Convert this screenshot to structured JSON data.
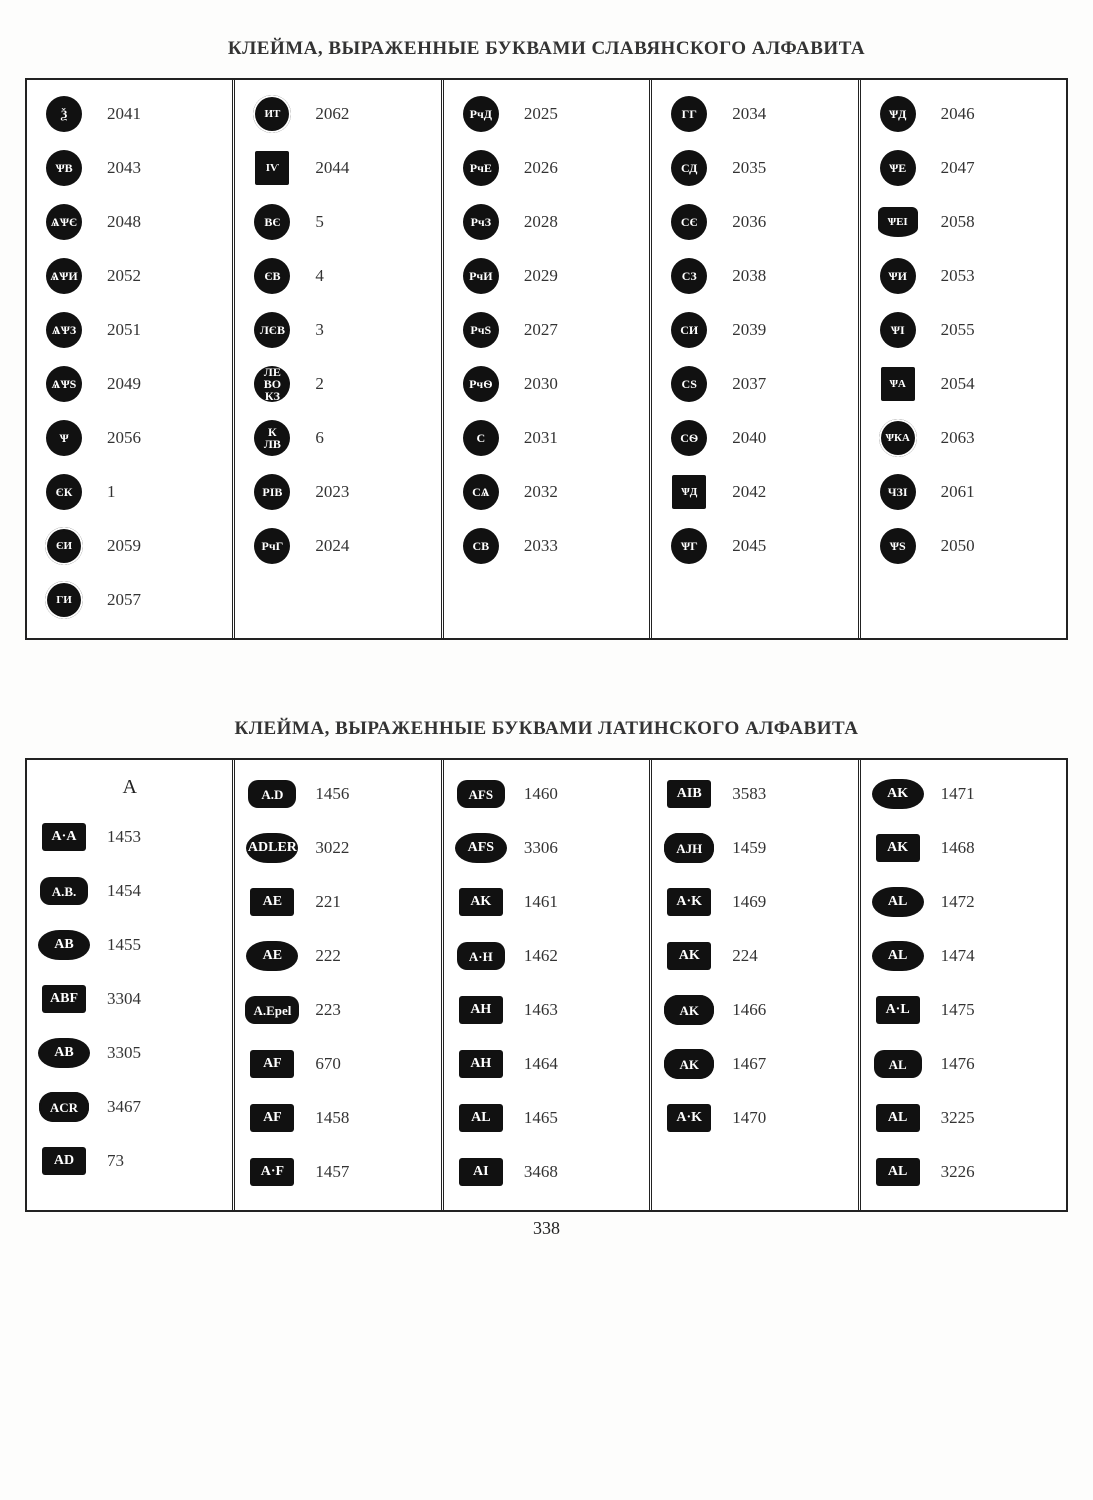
{
  "page_number": "338",
  "section1": {
    "heading": "КЛЕЙМА, ВЫРАЖЕННЫЕ БУКВАМИ СЛАВЯНСКОГО  АЛФАВИТА",
    "columns": [
      [
        {
          "glyph": "Ѯ",
          "shape": "circle",
          "num": "2041"
        },
        {
          "glyph": "ѰВ",
          "shape": "circle",
          "num": "2043"
        },
        {
          "glyph": "ѦѰЄ",
          "shape": "circle",
          "num": "2048"
        },
        {
          "glyph": "ѦѰИ",
          "shape": "circle",
          "num": "2052"
        },
        {
          "glyph": "ѦѰЗ",
          "shape": "circle",
          "num": "2051"
        },
        {
          "glyph": "ѦѰS",
          "shape": "circle",
          "num": "2049"
        },
        {
          "glyph": "Ѱ",
          "shape": "circle",
          "num": "2056"
        },
        {
          "glyph": "ЄК",
          "shape": "circle",
          "num": "1"
        },
        {
          "glyph": "ЄИ",
          "shape": "dbl",
          "num": "2059"
        },
        {
          "glyph": "ГИ",
          "shape": "dbl",
          "num": "2057"
        }
      ],
      [
        {
          "glyph": "ИТ",
          "shape": "dbl",
          "num": "2062"
        },
        {
          "glyph": "ІѴ",
          "shape": "square",
          "num": "2044"
        },
        {
          "glyph": "ВЄ",
          "shape": "circle",
          "num": "5"
        },
        {
          "glyph": "ЄВ",
          "shape": "circle",
          "num": "4"
        },
        {
          "glyph": "ЛЄВ",
          "shape": "circle",
          "num": "3"
        },
        {
          "glyph": "ЛЕ ВО КЗ",
          "shape": "circle",
          "num": "2"
        },
        {
          "glyph": "К ЛВ",
          "shape": "circle",
          "num": "6"
        },
        {
          "glyph": "РІВ",
          "shape": "circle",
          "num": "2023"
        },
        {
          "glyph": "РчГ",
          "shape": "circle",
          "num": "2024"
        }
      ],
      [
        {
          "glyph": "РчД",
          "shape": "circle",
          "num": "2025"
        },
        {
          "glyph": "РчЕ",
          "shape": "circle",
          "num": "2026"
        },
        {
          "glyph": "РчЗ",
          "shape": "circle",
          "num": "2028"
        },
        {
          "glyph": "РчИ",
          "shape": "circle",
          "num": "2029"
        },
        {
          "glyph": "РчS",
          "shape": "circle",
          "num": "2027"
        },
        {
          "glyph": "РчѲ",
          "shape": "circle",
          "num": "2030"
        },
        {
          "glyph": "С",
          "shape": "circle",
          "num": "2031"
        },
        {
          "glyph": "СѦ",
          "shape": "circle",
          "num": "2032"
        },
        {
          "glyph": "СВ",
          "shape": "circle",
          "num": "2033"
        }
      ],
      [
        {
          "glyph": "ГГ",
          "shape": "circle",
          "num": "2034"
        },
        {
          "glyph": "СД",
          "shape": "circle",
          "num": "2035"
        },
        {
          "glyph": "СЄ",
          "shape": "circle",
          "num": "2036"
        },
        {
          "glyph": "СЗ",
          "shape": "circle",
          "num": "2038"
        },
        {
          "glyph": "СИ",
          "shape": "circle",
          "num": "2039"
        },
        {
          "glyph": "СS",
          "shape": "circle",
          "num": "2037"
        },
        {
          "glyph": "СѲ",
          "shape": "circle",
          "num": "2040"
        },
        {
          "glyph": "ѰД",
          "shape": "square",
          "num": "2042"
        },
        {
          "glyph": "ѰГ",
          "shape": "circle",
          "num": "2045"
        }
      ],
      [
        {
          "glyph": "ѰД",
          "shape": "circle",
          "num": "2046"
        },
        {
          "glyph": "ѰЕ",
          "shape": "circle",
          "num": "2047"
        },
        {
          "glyph": "ѰЕІ",
          "shape": "shield",
          "num": "2058"
        },
        {
          "glyph": "ѰИ",
          "shape": "circle",
          "num": "2053"
        },
        {
          "glyph": "ѰІ",
          "shape": "circle",
          "num": "2055"
        },
        {
          "glyph": "ѰА",
          "shape": "square",
          "num": "2054"
        },
        {
          "glyph": "ѰКА",
          "shape": "dbl",
          "num": "2063"
        },
        {
          "glyph": "ЧЗІ",
          "shape": "circle",
          "num": "2061"
        },
        {
          "glyph": "ѰS",
          "shape": "circle",
          "num": "2050"
        }
      ]
    ]
  },
  "section2": {
    "heading": "КЛЕЙМА, ВЫРАЖЕННЫЕ БУКВАМИ ЛАТИНСКОГО АЛФАВИТА",
    "columns": [
      [
        {
          "glyph": "A",
          "shape": "none",
          "num": "",
          "is_header": true
        },
        {
          "glyph": "A·A",
          "shape": "rect",
          "num": "1453"
        },
        {
          "glyph": "A.B.",
          "shape": "rrect",
          "num": "1454"
        },
        {
          "glyph": "AB",
          "shape": "oval",
          "num": "1455"
        },
        {
          "glyph": "ABF",
          "shape": "rect",
          "num": "3304"
        },
        {
          "glyph": "AB",
          "shape": "oval",
          "num": "3305"
        },
        {
          "glyph": "ACR",
          "shape": "cloud",
          "num": "3467"
        },
        {
          "glyph": "AD",
          "shape": "rect",
          "num": "73"
        }
      ],
      [
        {
          "glyph": "A.D",
          "shape": "rrect",
          "num": "1456"
        },
        {
          "glyph": "ADLER",
          "shape": "oval",
          "num": "3022"
        },
        {
          "glyph": "AE",
          "shape": "rect",
          "num": "221"
        },
        {
          "glyph": "AE",
          "shape": "oval",
          "num": "222"
        },
        {
          "glyph": "A.Epel",
          "shape": "rrect",
          "num": "223"
        },
        {
          "glyph": "AF",
          "shape": "rect",
          "num": "670"
        },
        {
          "glyph": "AF",
          "shape": "rect",
          "num": "1458"
        },
        {
          "glyph": "A·F",
          "shape": "rect",
          "num": "1457"
        }
      ],
      [
        {
          "glyph": "AFS",
          "shape": "rrect",
          "num": "1460"
        },
        {
          "glyph": "AFS",
          "shape": "oval",
          "num": "3306"
        },
        {
          "glyph": "AK",
          "shape": "rect",
          "num": "1461"
        },
        {
          "glyph": "A·H",
          "shape": "rrect",
          "num": "1462"
        },
        {
          "glyph": "AH",
          "shape": "rect",
          "num": "1463"
        },
        {
          "glyph": "AH",
          "shape": "rect",
          "num": "1464"
        },
        {
          "glyph": "AL",
          "shape": "rect",
          "num": "1465"
        },
        {
          "glyph": "AI",
          "shape": "rect",
          "num": "3468"
        }
      ],
      [
        {
          "glyph": "AIB",
          "shape": "rect",
          "num": "3583"
        },
        {
          "glyph": "AJH",
          "shape": "cloud",
          "num": "1459"
        },
        {
          "glyph": "A·K",
          "shape": "rect",
          "num": "1469"
        },
        {
          "glyph": "AK",
          "shape": "rect",
          "num": "224"
        },
        {
          "glyph": "AK",
          "shape": "cloud",
          "num": "1466"
        },
        {
          "glyph": "AK",
          "shape": "cloud",
          "num": "1467"
        },
        {
          "glyph": "A·K",
          "shape": "rect",
          "num": "1470"
        }
      ],
      [
        {
          "glyph": "AK",
          "shape": "oval",
          "num": "1471"
        },
        {
          "glyph": "AK",
          "shape": "rect",
          "num": "1468"
        },
        {
          "glyph": "AL",
          "shape": "oval",
          "num": "1472"
        },
        {
          "glyph": "AL",
          "shape": "oval",
          "num": "1474"
        },
        {
          "glyph": "A·L",
          "shape": "rect",
          "num": "1475"
        },
        {
          "glyph": "AL",
          "shape": "rrect",
          "num": "1476"
        },
        {
          "glyph": "AL",
          "shape": "rect",
          "num": "3225"
        },
        {
          "glyph": "AL",
          "shape": "rect",
          "num": "3226"
        }
      ]
    ]
  }
}
